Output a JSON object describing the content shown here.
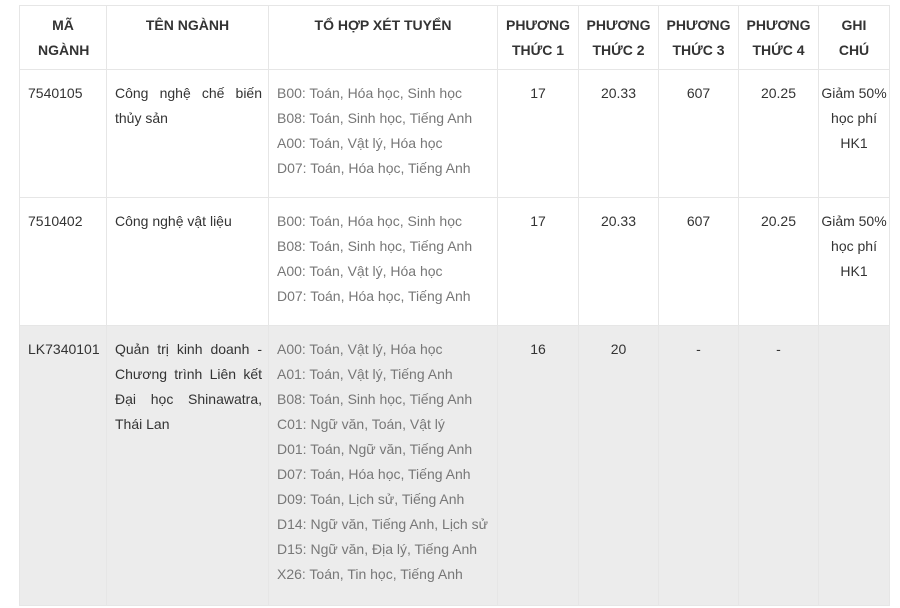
{
  "headers": {
    "code": "MÃ NGÀNH",
    "name": "TÊN NGÀNH",
    "combos": "TỔ HỢP XÉT TUYỂN",
    "m1": "PHƯƠNG THỨC 1",
    "m2": "PHƯƠNG THỨC 2",
    "m3": "PHƯƠNG THỨC 3",
    "m4": "PHƯƠNG THỨC 4",
    "note": "GHI CHÚ"
  },
  "rows": [
    {
      "code": "7540105",
      "name": "Công nghệ chế biến thủy sản",
      "combos": [
        "B00: Toán, Hóa học, Sinh học",
        "B08: Toán, Sinh học, Tiếng Anh",
        "A00: Toán, Vật lý, Hóa học",
        "D07: Toán, Hóa học, Tiếng Anh"
      ],
      "m1": "17",
      "m2": "20.33",
      "m3": "607",
      "m4": "20.25",
      "note": "Giảm 50% học phí HK1"
    },
    {
      "code": "7510402",
      "name": "Công nghệ vật liệu",
      "combos": [
        "B00: Toán, Hóa học, Sinh học",
        "B08: Toán, Sinh học, Tiếng Anh",
        "A00: Toán, Vật lý, Hóa học",
        "D07: Toán, Hóa học, Tiếng Anh"
      ],
      "m1": "17",
      "m2": "20.33",
      "m3": "607",
      "m4": "20.25",
      "note": "Giảm 50% học phí HK1"
    },
    {
      "code": "LK7340101",
      "name": "Quản trị kinh doanh - Chương trình Liên kết Đại học Shinawatra, Thái Lan",
      "combos": [
        "A00: Toán, Vật lý, Hóa học",
        "A01: Toán, Vật lý, Tiếng Anh",
        "B08: Toán, Sinh học, Tiếng Anh",
        "C01: Ngữ văn, Toán, Vật lý",
        "D01: Toán, Ngữ văn, Tiếng Anh",
        "D07: Toán, Hóa học, Tiếng Anh",
        "D09: Toán, Lịch sử, Tiếng Anh",
        "D14: Ngữ văn, Tiếng Anh, Lịch sử",
        "D15: Ngữ văn, Địa lý, Tiếng Anh",
        "X26: Toán, Tin học, Tiếng Anh"
      ],
      "m1": "16",
      "m2": "20",
      "m3": "-",
      "m4": "-",
      "note": ""
    }
  ]
}
